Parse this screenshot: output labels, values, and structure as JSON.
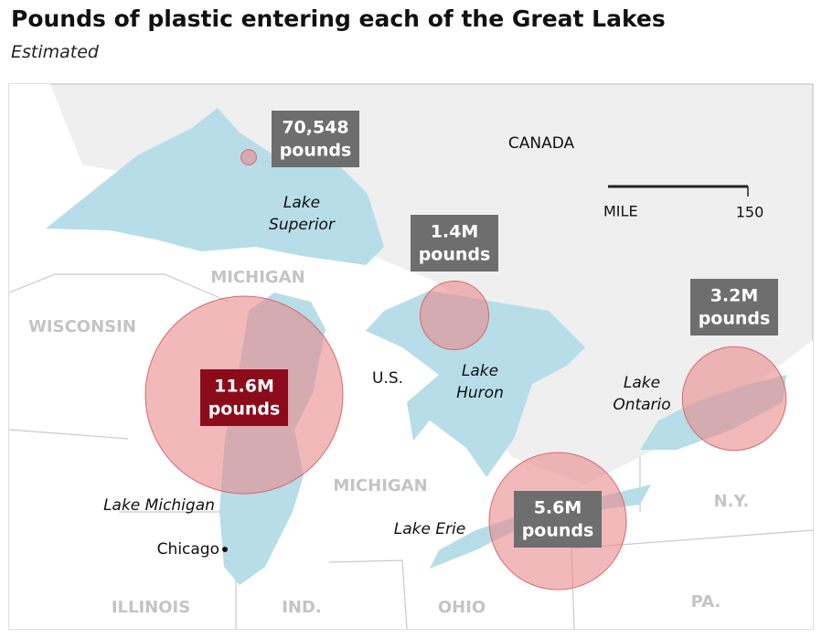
{
  "title": "Pounds of plastic entering each of the Great Lakes",
  "subtitle": "Estimated",
  "map": {
    "regions": [
      "CANADA",
      "MICHIGAN",
      "WISCONSIN",
      "U.S.",
      "MICHIGAN",
      "ILLINOIS",
      "IND.",
      "OHIO",
      "PA.",
      "N.Y."
    ],
    "lakes": [
      [
        "Lake",
        "Superior"
      ],
      [
        "Lake",
        "Huron"
      ],
      [
        "Lake",
        "Ontario"
      ],
      [
        "Lake Michigan"
      ],
      [
        "Lake Erie"
      ]
    ],
    "city": "Chicago",
    "scale": {
      "unit": "MILE",
      "max_label": "150"
    },
    "bubble_color": "#e88a8a",
    "bubbles": [
      {
        "value": 70548,
        "label": [
          "70,548",
          "pounds"
        ],
        "box_color": "#6e6e6e"
      },
      {
        "value": 1400000,
        "label": [
          "1.4M",
          "pounds"
        ],
        "box_color": "#6e6e6e"
      },
      {
        "value": 11600000,
        "label": [
          "11.6M",
          "pounds"
        ],
        "box_color": "#8c0b1a"
      },
      {
        "value": 5600000,
        "label": [
          "5.6M",
          "pounds"
        ],
        "box_color": "#6e6e6e"
      },
      {
        "value": 3200000,
        "label": [
          "3.2M",
          "pounds"
        ],
        "box_color": "#6e6e6e"
      }
    ]
  }
}
